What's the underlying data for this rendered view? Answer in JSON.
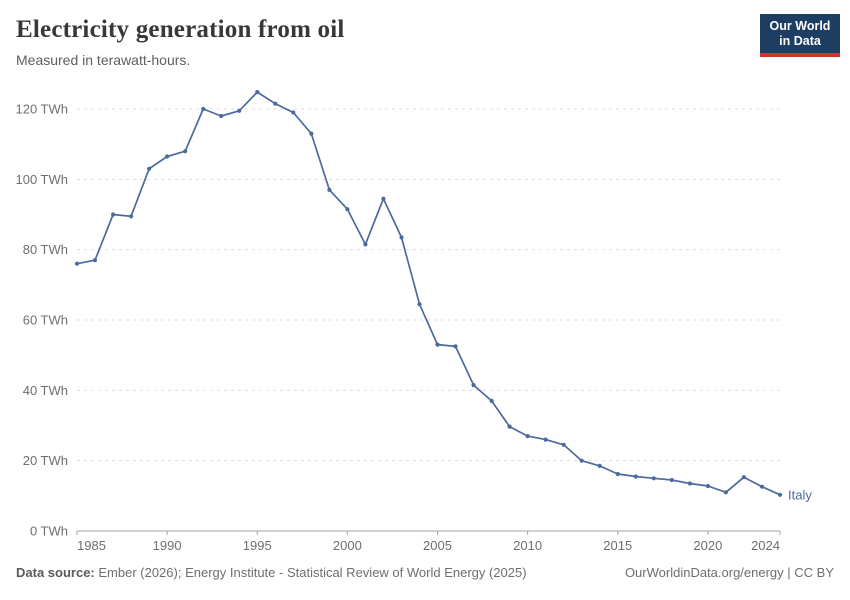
{
  "header": {
    "title": "Electricity generation from oil",
    "subtitle": "Measured in terawatt-hours.",
    "logo": {
      "line1": "Our World",
      "line2": "in Data",
      "bg_color": "#1d3d63",
      "accent_color": "#d2352b"
    }
  },
  "chart_data": {
    "type": "line",
    "title": "Electricity generation from oil",
    "subtitle": "Measured in terawatt-hours.",
    "xlabel": "",
    "ylabel": "",
    "xlim": [
      1985,
      2024
    ],
    "ylim": [
      0,
      120
    ],
    "x_ticks": [
      1985,
      1990,
      1995,
      2000,
      2005,
      2010,
      2015,
      2020,
      2024
    ],
    "y_ticks": [
      0,
      20,
      40,
      60,
      80,
      100,
      120
    ],
    "y_tick_suffix": " TWh",
    "grid": "horizontal-dashed",
    "legend_position": "end-of-line-label",
    "series": [
      {
        "name": "Italy",
        "color": "#4c6a9c",
        "points": [
          [
            1985,
            76
          ],
          [
            1986,
            77
          ],
          [
            1987,
            90
          ],
          [
            1988,
            89.5
          ],
          [
            1989,
            103
          ],
          [
            1990,
            106.5
          ],
          [
            1991,
            108
          ],
          [
            1992,
            120
          ],
          [
            1993,
            118
          ],
          [
            1994,
            119.5
          ],
          [
            1995,
            124.8
          ],
          [
            1996,
            121.5
          ],
          [
            1997,
            119
          ],
          [
            1998,
            113
          ],
          [
            1999,
            97
          ],
          [
            2000,
            91.5
          ],
          [
            2001,
            81.5
          ],
          [
            2002,
            94.5
          ],
          [
            2003,
            83.5
          ],
          [
            2004,
            64.5
          ],
          [
            2005,
            53
          ],
          [
            2006,
            52.5
          ],
          [
            2007,
            41.5
          ],
          [
            2008,
            37
          ],
          [
            2009,
            29.7
          ],
          [
            2010,
            27
          ],
          [
            2011,
            26
          ],
          [
            2012,
            24.5
          ],
          [
            2013,
            20
          ],
          [
            2014,
            18.5
          ],
          [
            2015,
            16.2
          ],
          [
            2016,
            15.5
          ],
          [
            2017,
            15
          ],
          [
            2018,
            14.5
          ],
          [
            2019,
            13.5
          ],
          [
            2020,
            12.8
          ],
          [
            2021,
            11
          ],
          [
            2022,
            15.3
          ],
          [
            2023,
            12.6
          ],
          [
            2024,
            10.3
          ]
        ]
      }
    ]
  },
  "footer": {
    "source_label": "Data source:",
    "source_text": " Ember (2026); Energy Institute - Statistical Review of World Energy (2025)",
    "credit": "OurWorldinData.org/energy | CC BY"
  }
}
